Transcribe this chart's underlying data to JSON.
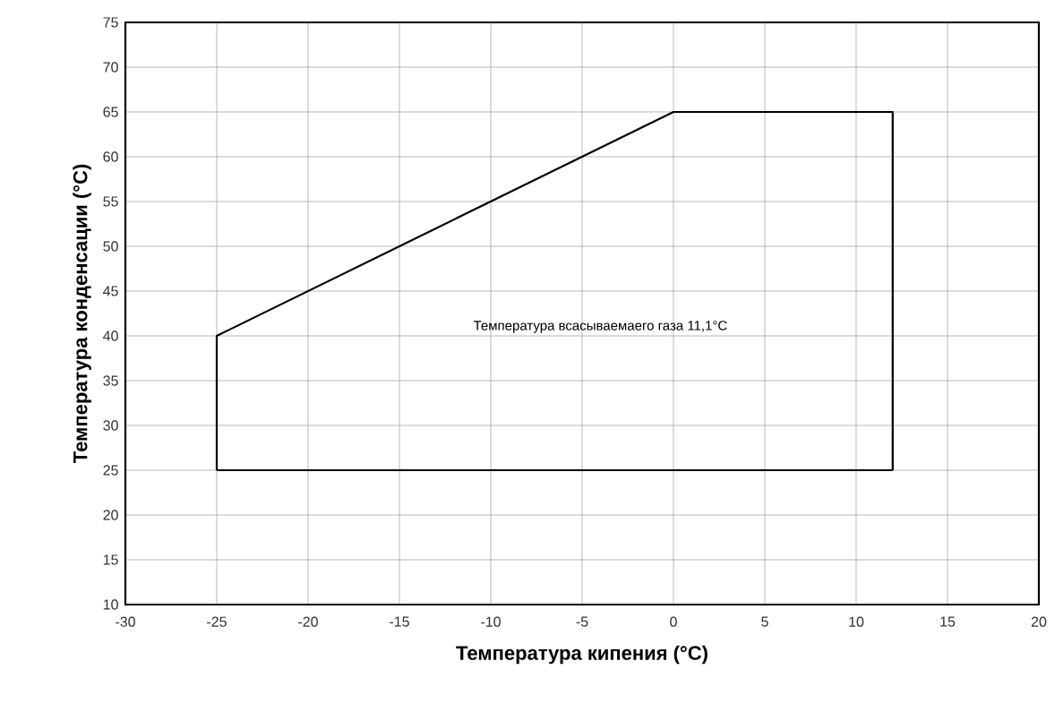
{
  "chart_data": {
    "type": "line",
    "xlabel": "Температура кипения (°C)",
    "ylabel": "Температура конденсации (°C)",
    "annotations": [
      "Температура всасываемаего газа 11,1°C"
    ],
    "series": [
      {
        "color": "#000000",
        "x": [
          -25,
          -25,
          0,
          12,
          12
        ],
        "values": [
          25,
          40,
          65,
          65,
          25
        ]
      },
      {
        "color": "#000000",
        "x": [
          -25,
          12
        ],
        "values": [
          25,
          25
        ]
      }
    ],
    "xlim": [
      -30,
      20
    ],
    "ylim": [
      10,
      75
    ],
    "xticks": [
      -30,
      -25,
      -20,
      -15,
      -10,
      -5,
      0,
      5,
      10,
      15,
      20
    ],
    "yticks": [
      10,
      15,
      20,
      25,
      30,
      35,
      40,
      45,
      50,
      55,
      60,
      65,
      70,
      75
    ],
    "grid": true,
    "marker": "none",
    "line_style": "solid"
  }
}
